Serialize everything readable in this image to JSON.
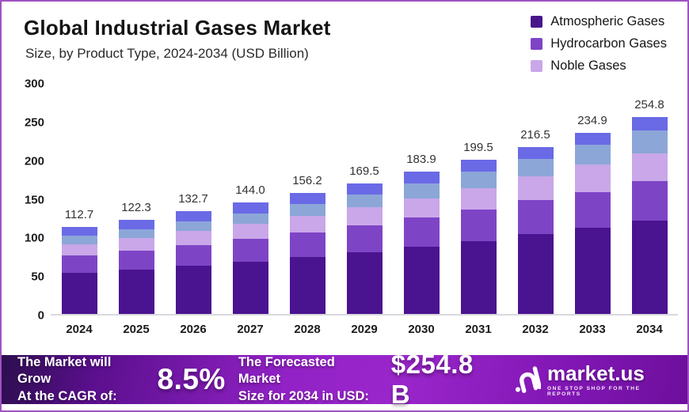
{
  "header": {
    "title": "Global Industrial Gases Market",
    "subtitle": "Size, by Product Type, 2024-2034 (USD Billion)"
  },
  "legend": {
    "items": [
      {
        "label": "Atmospheric Gases",
        "color": "#48168a"
      },
      {
        "label": "Hydrocarbon Gases",
        "color": "#7e44c6"
      },
      {
        "label": "Noble Gases",
        "color": "#c9a7e9"
      }
    ]
  },
  "chart_data": {
    "type": "bar",
    "stacked": true,
    "title": "Global Industrial Gases Market Size, by Product Type, 2024-2034 (USD Billion)",
    "categories": [
      "2024",
      "2025",
      "2026",
      "2027",
      "2028",
      "2029",
      "2030",
      "2031",
      "2032",
      "2033",
      "2034"
    ],
    "totals": [
      112.7,
      122.3,
      132.7,
      144.0,
      156.2,
      169.5,
      183.9,
      199.5,
      216.5,
      234.9,
      254.8
    ],
    "totals_display": [
      "112.7",
      "122.3",
      "132.7",
      "144.0",
      "156.2",
      "169.5",
      "183.9",
      "199.5",
      "216.5",
      "234.9",
      "254.8"
    ],
    "series": [
      {
        "name": "Atmospheric Gases",
        "color": "#4a1390",
        "values": [
          53.5,
          57.5,
          62.5,
          67.5,
          73.5,
          80.0,
          87.0,
          94.5,
          103.0,
          111.4,
          120.9
        ]
      },
      {
        "name": "Hydrocarbon Gases",
        "color": "#7e44c6",
        "values": [
          22.5,
          24.5,
          27.0,
          29.5,
          32.0,
          34.5,
          37.5,
          40.5,
          44.5,
          46.3,
          51.0
        ]
      },
      {
        "name": "Noble Gases",
        "color": "#c9a7e9",
        "values": [
          14.5,
          16.3,
          18.2,
          20.0,
          21.7,
          23.5,
          25.4,
          27.5,
          31.0,
          36.0,
          35.9
        ]
      },
      {
        "name": "unlabeled-steel-blue",
        "color": "#8ca6d8",
        "values": [
          10.5,
          11.5,
          12.0,
          13.5,
          15.0,
          17.0,
          19.0,
          21.5,
          22.0,
          25.7,
          30.0
        ]
      },
      {
        "name": "unlabeled-periwinkle",
        "color": "#6a6ae6",
        "values": [
          11.7,
          12.5,
          13.0,
          13.5,
          14.0,
          14.5,
          15.0,
          15.5,
          16.0,
          15.5,
          17.0
        ]
      }
    ],
    "ylim": [
      0,
      300
    ],
    "yticks": [
      0,
      50,
      100,
      150,
      200,
      250,
      300
    ],
    "grid": false,
    "legend_position": "top-right",
    "value_labels": "totals shown above each bar"
  },
  "banner": {
    "cagr_label_line1": "The Market will Grow",
    "cagr_label_line2": "At the CAGR of:",
    "cagr_value": "8.5%",
    "forecast_label_line1": "The Forecasted Market",
    "forecast_label_line2": "Size for 2034 in USD:",
    "forecast_value": "$254.8 B",
    "logo": {
      "name": "market.us",
      "tagline": "ONE STOP SHOP FOR THE REPORTS"
    }
  },
  "colors": {
    "frame_border": "#a052c2",
    "background": "#ffffff",
    "axis_baseline": "#d9d9de",
    "tick_text": "#1b1b1b",
    "bar_total_label": "#333333",
    "banner_text": "#ffffff",
    "banner_gradient_start": "#2c0e4e",
    "banner_gradient_mid": "#9a26cb",
    "banner_gradient_end": "#6d0f9c"
  }
}
